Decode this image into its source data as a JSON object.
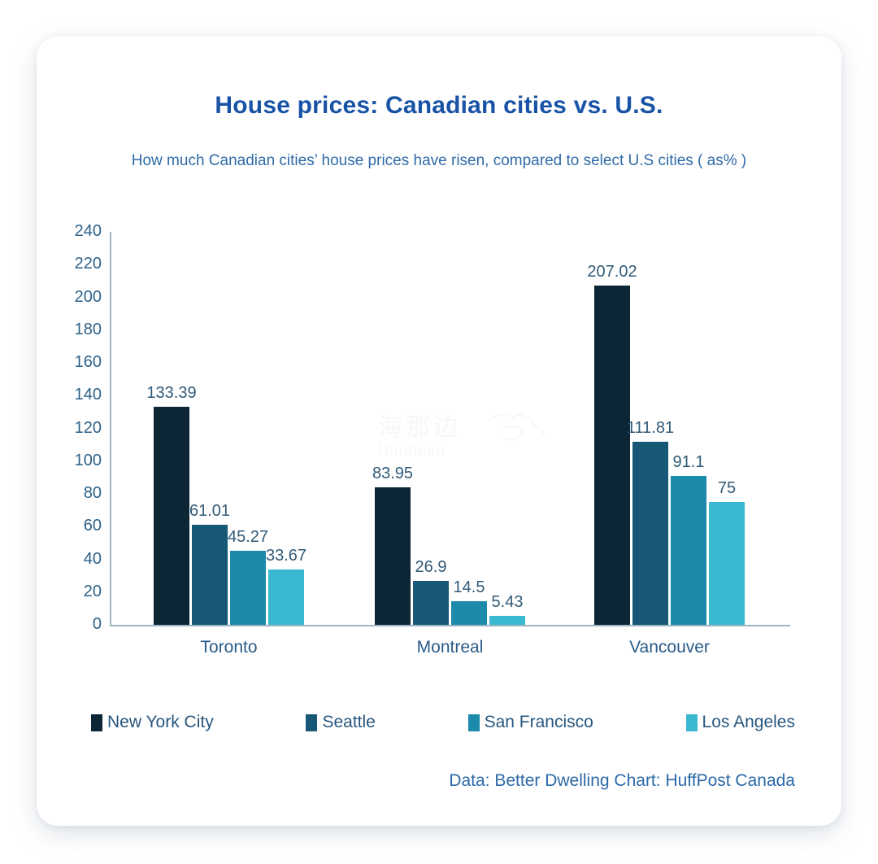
{
  "header": {
    "title": "House prices: Canadian cities vs. U.S.",
    "subtitle": "How much Canadian cities’ house prices have risen, compared to select U.S cities ( as% )"
  },
  "watermark": {
    "cjk": "海那边",
    "latin": "Hinabian"
  },
  "footer": {
    "credit": "Data: Better Dwelling Chart: HuffPost Canada"
  },
  "colors": {
    "title": "#1853a6",
    "subtitle": "#2f6ba8",
    "tick": "#2c6189",
    "category": "#275b88",
    "data_label": "#315a77",
    "legend_text": "#27567e",
    "footer": "#2b69a9",
    "axis_line": "#9db4c3"
  },
  "chart_data": {
    "type": "bar",
    "title": "House prices: Canadian cities vs. U.S.",
    "xlabel": "",
    "ylabel": "",
    "categories": [
      "Toronto",
      "Montreal",
      "Vancouver"
    ],
    "series": [
      {
        "name": "New York City",
        "color": "#0c2636",
        "values": [
          133.39,
          83.95,
          207.02
        ]
      },
      {
        "name": "Seattle",
        "color": "#175877",
        "values": [
          61.01,
          26.9,
          111.81
        ]
      },
      {
        "name": "San Francisco",
        "color": "#1c8aab",
        "values": [
          45.27,
          14.5,
          91.1
        ]
      },
      {
        "name": "Los Angeles",
        "color": "#3ab8cf",
        "values": [
          33.67,
          5.43,
          75
        ]
      }
    ],
    "ylim": [
      0,
      240
    ],
    "ytick_step": 20,
    "grid": false,
    "value_labels": true,
    "legend_position": "bottom"
  }
}
